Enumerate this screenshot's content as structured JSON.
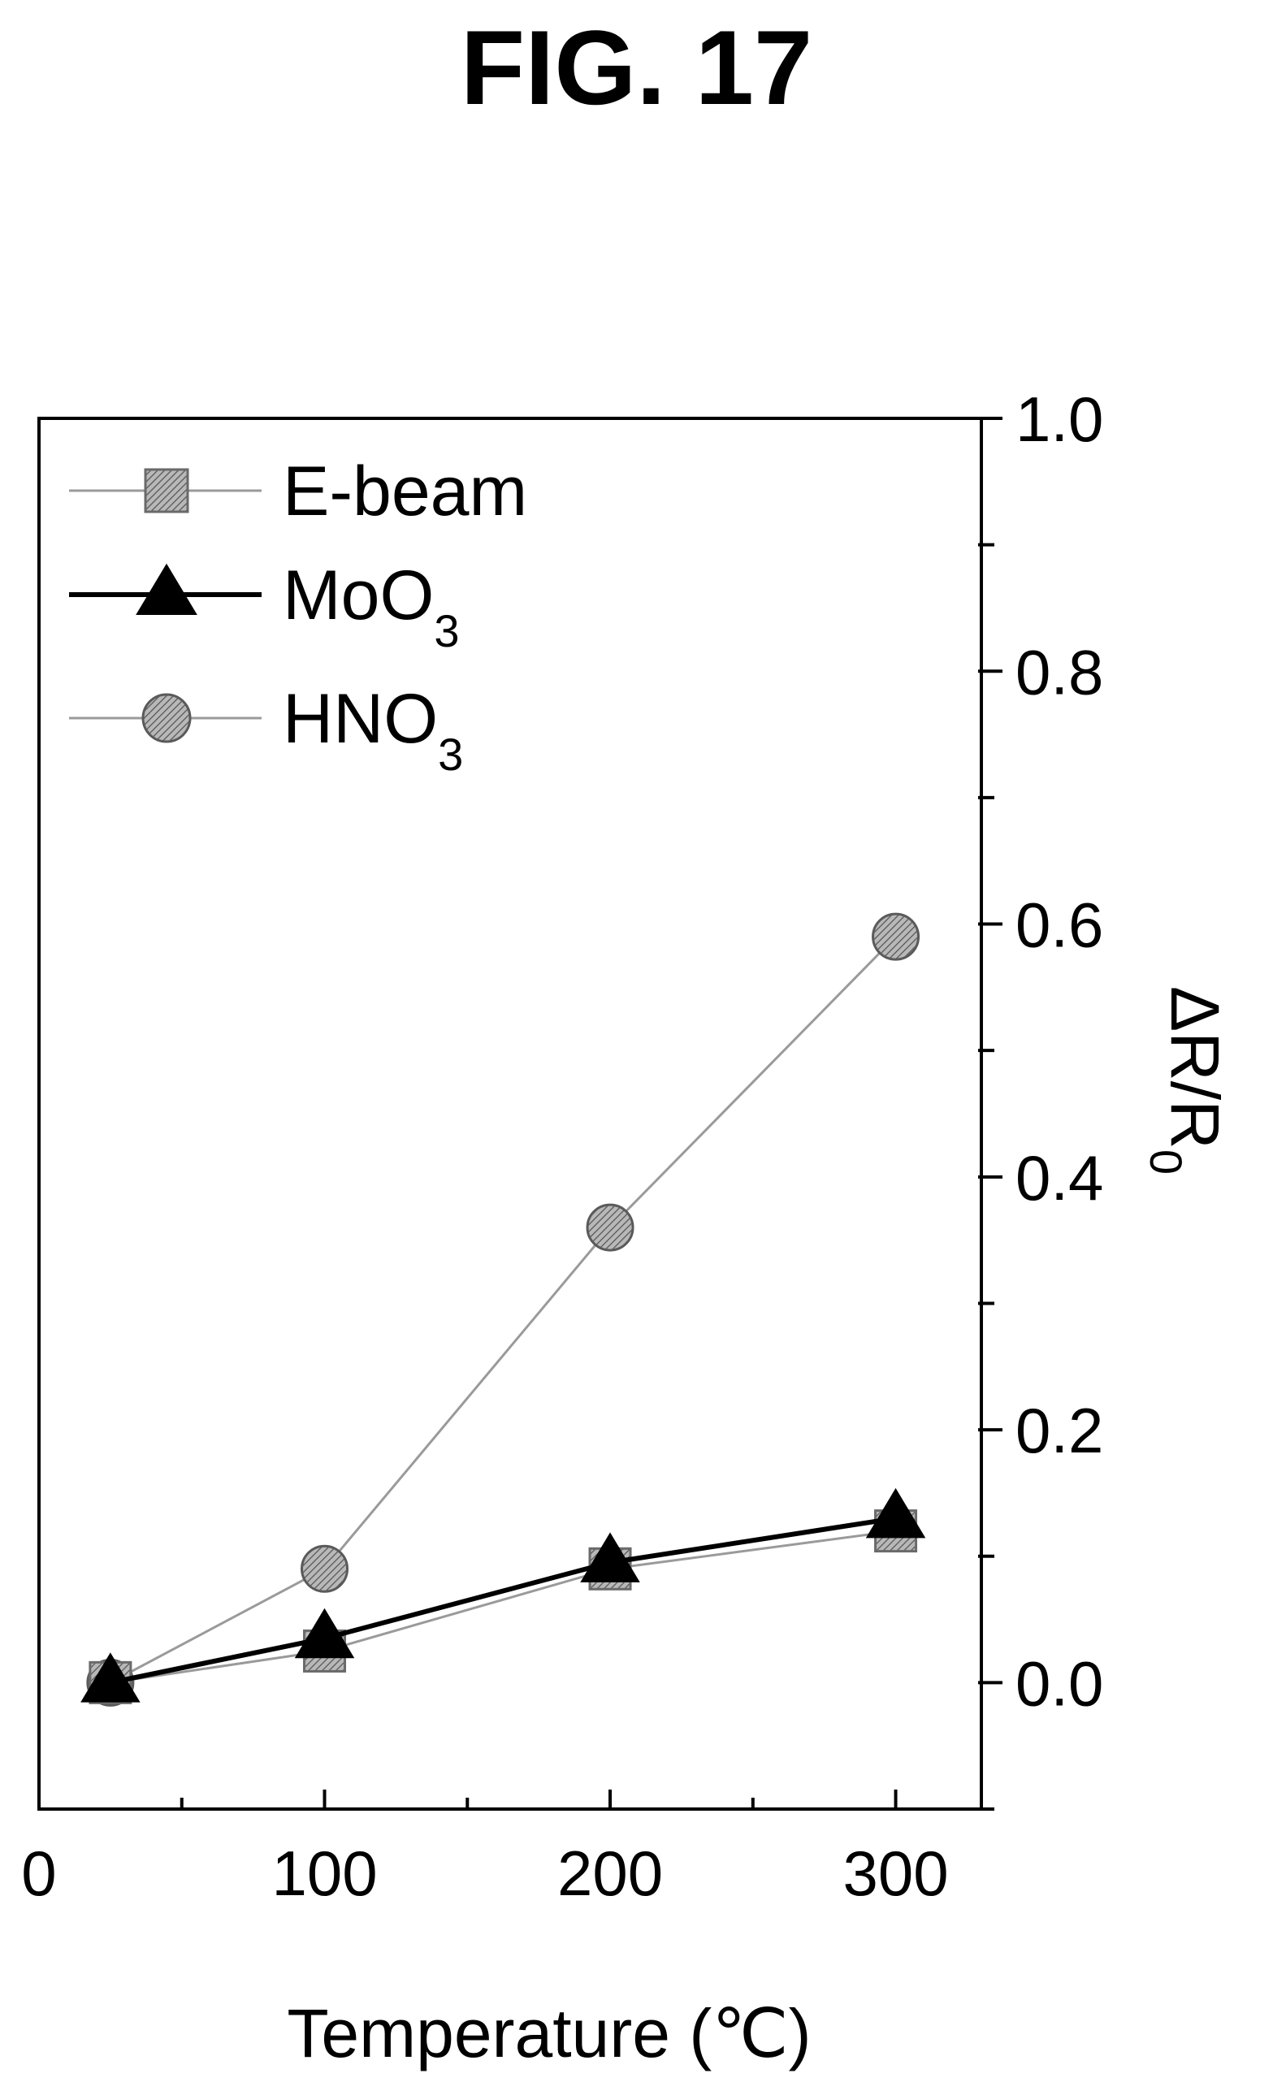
{
  "figure": {
    "label": "FIG. 17"
  },
  "chart_data": {
    "type": "line",
    "xlabel": "Temperature (℃)",
    "ylabel": "ΔR/R",
    "ylabel_subscript": "0",
    "xlim": [
      0,
      330
    ],
    "ylim": [
      -0.1,
      1.0
    ],
    "x_ticks": [
      0,
      100,
      200,
      300
    ],
    "x_minor_ticks": [
      50,
      150,
      250
    ],
    "y_ticks": [
      0.0,
      0.2,
      0.4,
      0.6,
      0.8,
      1.0
    ],
    "y_minor_ticks": [
      -0.1,
      0.1,
      0.3,
      0.5,
      0.7,
      0.9
    ],
    "y_axis_side": "right",
    "legend_position": "top-left",
    "grid": false,
    "series": [
      {
        "name": "E-beam",
        "name_subscript": "",
        "marker": "square",
        "color": "#999999",
        "line_color": "#9a9a9a",
        "x": [
          25,
          100,
          200,
          300
        ],
        "y": [
          0.0,
          0.025,
          0.09,
          0.12
        ]
      },
      {
        "name": "MoO",
        "name_subscript": "3",
        "marker": "triangle",
        "color": "#000000",
        "line_color": "#000000",
        "x": [
          25,
          100,
          200,
          300
        ],
        "y": [
          0.0,
          0.035,
          0.095,
          0.13
        ]
      },
      {
        "name": "HNO",
        "name_subscript": "3",
        "marker": "circle",
        "color": "#8c8c8c",
        "line_color": "#9a9a9a",
        "x": [
          25,
          100,
          200,
          300
        ],
        "y": [
          0.0,
          0.09,
          0.36,
          0.59
        ]
      }
    ]
  }
}
